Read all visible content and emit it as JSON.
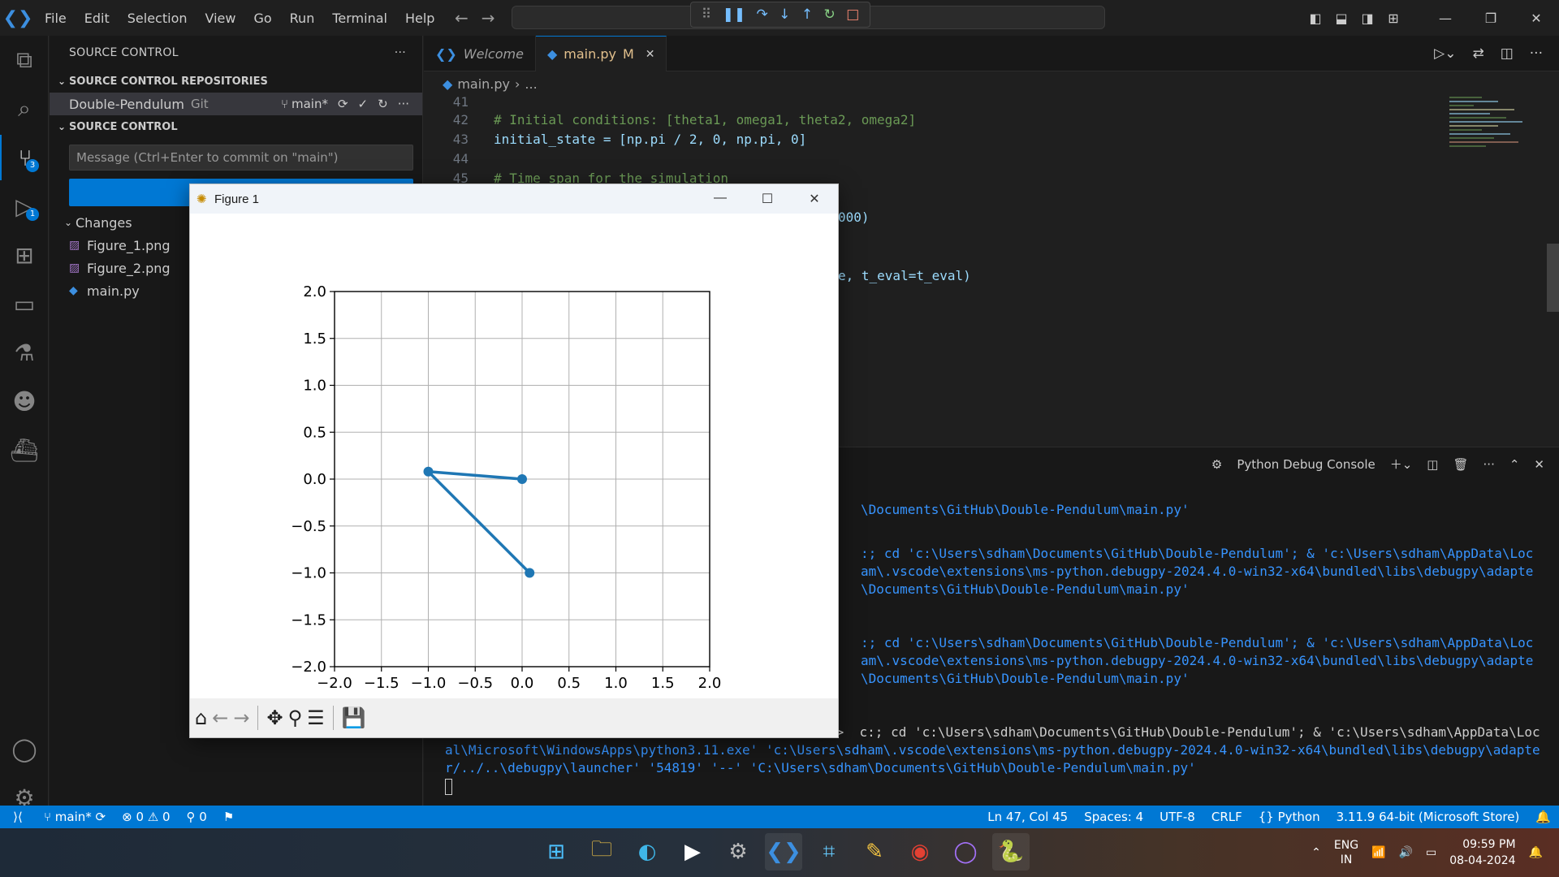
{
  "menu": [
    "File",
    "Edit",
    "Selection",
    "View",
    "Go",
    "Run",
    "Terminal",
    "Help"
  ],
  "sidebar": {
    "title": "SOURCE CONTROL",
    "repos_section": "SOURCE CONTROL REPOSITORIES",
    "repo_name": "Double-Pendulum",
    "repo_type": "Git",
    "branch": "main*",
    "sc_section": "SOURCE CONTROL",
    "message_placeholder": "Message (Ctrl+Enter to commit on \"main\")",
    "changes_label": "Changes",
    "files": [
      "Figure_1.png",
      "Figure_2.png",
      "main.py"
    ]
  },
  "activity_badges": {
    "scm": "3",
    "debug": "1"
  },
  "tabs": [
    {
      "label": "Welcome",
      "status": ""
    },
    {
      "label": "main.py",
      "status": "M"
    }
  ],
  "breadcrumb": {
    "file": "main.py",
    "rest": "..."
  },
  "editor": {
    "lines": [
      {
        "n": "41",
        "code": ""
      },
      {
        "n": "42",
        "code": "# Initial conditions: [theta1, omega1, theta2, omega2]"
      },
      {
        "n": "43",
        "code": "initial_state = [np.pi / 2, 0, np.pi, 0]"
      },
      {
        "n": "44",
        "code": ""
      },
      {
        "n": "45",
        "code": "# Time span for the simulation"
      }
    ],
    "partial_1": "000)",
    "partial_2": "e, t_eval=t_eval)"
  },
  "panel": {
    "title": "Python Debug Console",
    "lines": [
      "\\Documents\\GitHub\\Double-Pendulum\\main.py'",
      ":; cd 'c:\\Users\\sdham\\Documents\\GitHub\\Double-Pendulum'; & 'c:\\Users\\sdham\\AppData\\Loc",
      "am\\.vscode\\extensions\\ms-python.debugpy-2024.4.0-win32-x64\\bundled\\libs\\debugpy\\adapte",
      "\\Documents\\GitHub\\Double-Pendulum\\main.py'",
      ":; cd 'c:\\Users\\sdham\\Documents\\GitHub\\Double-Pendulum'; & 'c:\\Users\\sdham\\AppData\\Loc",
      "am\\.vscode\\extensions\\ms-python.debugpy-2024.4.0-win32-x64\\bundled\\libs\\debugpy\\adapte",
      "\\Documents\\GitHub\\Double-Pendulum\\main.py'",
      "PS C:\\Users\\sdham\\Documents\\GitHub\\Double-Pendulum>  c:; cd 'c:\\Users\\sdham\\Documents\\GitHub\\Double-Pendulum'; & 'c:\\Users\\sdham\\AppData\\Loc",
      "al\\Microsoft\\WindowsApps\\python3.11.exe' 'c:\\Users\\sdham\\.vscode\\extensions\\ms-python.debugpy-2024.4.0-win32-x64\\bundled\\libs\\debugpy\\adapte",
      "r/../..\\debugpy\\launcher' '54819' '--' 'C:\\Users\\sdham\\Documents\\GitHub\\Double-Pendulum\\main.py'"
    ]
  },
  "statusbar": {
    "branch": "main*",
    "errors": "0",
    "warnings": "0",
    "ports": "0",
    "position": "Ln 47, Col 45",
    "spaces": "Spaces: 4",
    "encoding": "UTF-8",
    "eol": "CRLF",
    "language": "Python",
    "interpreter": "3.11.9 64-bit (Microsoft Store)"
  },
  "figure": {
    "title": "Figure 1"
  },
  "chart_data": {
    "type": "line",
    "title": "",
    "xlabel": "",
    "ylabel": "",
    "xlim": [
      -2.0,
      2.0
    ],
    "ylim": [
      -2.0,
      2.0
    ],
    "xticks": [
      "−2.0",
      "−1.5",
      "−1.0",
      "−0.5",
      "0.0",
      "0.5",
      "1.0",
      "1.5",
      "2.0"
    ],
    "yticks": [
      "2.0",
      "1.5",
      "1.0",
      "0.5",
      "0.0",
      "−0.5",
      "−1.0",
      "−1.5",
      "−2.0"
    ],
    "grid": true,
    "series": [
      {
        "x": [
          0.0,
          -1.0,
          0.08
        ],
        "y": [
          0.0,
          0.08,
          -1.0
        ],
        "color": "#1f77b4",
        "marker": "o"
      }
    ]
  },
  "taskbar": {
    "lang1": "ENG",
    "lang2": "IN",
    "time": "09:59 PM",
    "date": "08-04-2024"
  },
  "colors": {
    "accent": "#0078d4",
    "editor_bg": "#1f1f1f",
    "line_color": "#1f77b4"
  }
}
